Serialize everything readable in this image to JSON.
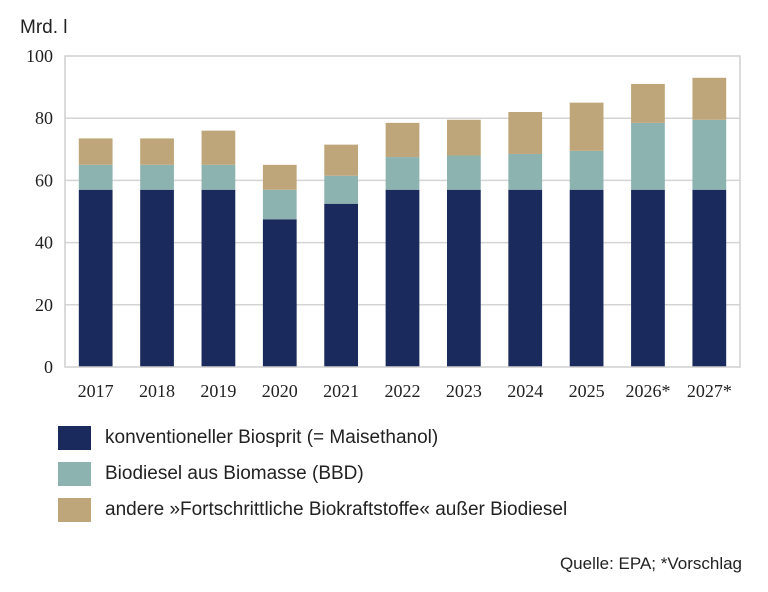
{
  "chart_data": {
    "type": "bar",
    "stacked": true,
    "ylabel": "Mrd. l",
    "ylim": [
      0,
      100
    ],
    "yticks": [
      0,
      20,
      40,
      60,
      80,
      100
    ],
    "grid": true,
    "legend_position": "bottom-left",
    "categories": [
      "2017",
      "2018",
      "2019",
      "2020",
      "2021",
      "2022",
      "2023",
      "2024",
      "2025",
      "2026*",
      "2027*"
    ],
    "series": [
      {
        "name": "konventioneller Biosprit (= Maisethanol)",
        "color": "#1b2a5c",
        "values": [
          57,
          57,
          57,
          47.5,
          52.5,
          57,
          57,
          57,
          57,
          57,
          57
        ]
      },
      {
        "name": "Biodiesel aus Biomasse (BBD)",
        "color": "#8db3b1",
        "values": [
          8,
          8,
          8,
          9.5,
          9,
          10.5,
          11,
          11.5,
          12.5,
          21.5,
          22.5
        ]
      },
      {
        "name": "andere »Fortschrittliche Biokraftstoffe« außer Biodiesel",
        "color": "#bfa67a",
        "values": [
          8.5,
          8.5,
          11,
          8,
          10,
          11,
          11.5,
          13.5,
          15.5,
          12.5,
          13.5
        ]
      }
    ],
    "source": "Quelle: EPA; *Vorschlag"
  }
}
